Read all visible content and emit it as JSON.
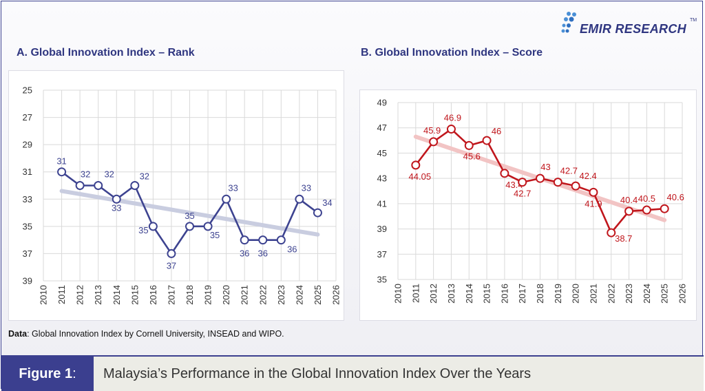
{
  "brand": {
    "name": "EMIR RESEARCH",
    "tm": "TM"
  },
  "panels": {
    "a_title": "A. Global Innovation Index – Rank",
    "b_title": "B. Global Innovation Index – Score"
  },
  "source": {
    "label": "Data",
    "text": ": Global Innovation Index by Cornell University, INSEAD and WIPO."
  },
  "caption": {
    "tag": "Figure 1",
    "colon": ":",
    "text": "Malaysia’s Performance in the Global Innovation Index Over the Years"
  },
  "colors": {
    "rank_line": "#3d4390",
    "rank_trend": "#c9cde0",
    "score_line": "#c0161c",
    "score_trend": "#f2c4c4",
    "accent": "#3b3f8f"
  },
  "chart_data": [
    {
      "type": "line",
      "title": "A. Global Innovation Index – Rank",
      "x": [
        2011,
        2012,
        2013,
        2014,
        2015,
        2016,
        2017,
        2018,
        2019,
        2020,
        2021,
        2022,
        2023,
        2024,
        2025
      ],
      "series": [
        {
          "values": [
            31,
            32,
            32,
            33,
            32,
            35,
            37,
            35,
            35,
            33,
            36,
            36,
            36,
            33,
            34
          ]
        }
      ],
      "data_labels": [
        "31",
        "32",
        "32",
        "33",
        "32",
        "35",
        "37",
        "35",
        "35",
        "33",
        "36",
        "36",
        "36",
        "33",
        "34"
      ],
      "trendline": {
        "start": [
          2011,
          32.4
        ],
        "end": [
          2025,
          35.6
        ]
      },
      "xlim": [
        2010,
        2026
      ],
      "x_ticks": [
        "2010",
        "2011",
        "2012",
        "2013",
        "2014",
        "2015",
        "2016",
        "2017",
        "2018",
        "2019",
        "2020",
        "2021",
        "2022",
        "2023",
        "2024",
        "2025",
        "2026"
      ],
      "ylim": [
        25,
        39
      ],
      "y_inverted": true,
      "y_ticks": [
        "25",
        "27",
        "29",
        "31",
        "33",
        "35",
        "37",
        "39"
      ],
      "grid": true
    },
    {
      "type": "line",
      "title": "B. Global Innovation Index – Score",
      "x": [
        2011,
        2012,
        2013,
        2014,
        2015,
        2016,
        2017,
        2018,
        2019,
        2020,
        2021,
        2022,
        2023,
        2024,
        2025
      ],
      "series": [
        {
          "values": [
            44.05,
            45.9,
            46.9,
            45.6,
            46,
            43.4,
            42.7,
            43,
            42.7,
            42.4,
            41.9,
            38.7,
            40.4,
            40.5,
            40.6
          ]
        }
      ],
      "data_labels": [
        "44.05",
        "45.9",
        "46.9",
        "45.6",
        "46",
        "43.4",
        "42.7",
        "43",
        "42.7",
        "42.4",
        "41.9",
        "38.7",
        "40.4",
        "40.5",
        "40.6"
      ],
      "trendline": {
        "start": [
          2011,
          46.3
        ],
        "end": [
          2025,
          39.7
        ]
      },
      "xlim": [
        2010,
        2026
      ],
      "x_ticks": [
        "2010",
        "2011",
        "2012",
        "2013",
        "2014",
        "2015",
        "2016",
        "2017",
        "2018",
        "2019",
        "2020",
        "2021",
        "2022",
        "2023",
        "2024",
        "2025",
        "2026"
      ],
      "ylim": [
        35,
        49
      ],
      "y_ticks": [
        "35",
        "37",
        "39",
        "41",
        "43",
        "45",
        "47",
        "49"
      ],
      "grid": true
    }
  ]
}
